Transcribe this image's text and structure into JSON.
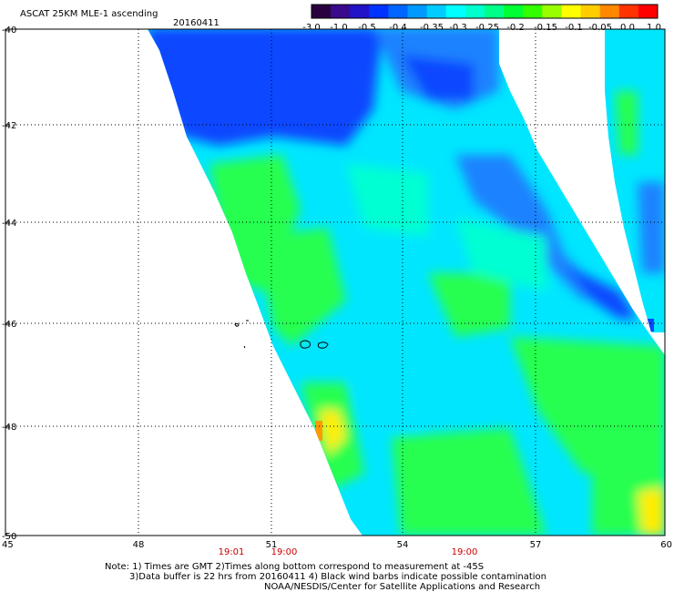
{
  "header": {
    "title": "ASCAT 25KM MLE-1 ascending",
    "date": "20160411"
  },
  "colorbar": {
    "labels": [
      "-3.0",
      "-1.0",
      "-0.5",
      "-0.4",
      "-0.35",
      "-0.3",
      "-0.25",
      "-0.2",
      "-0.15",
      "-0.1",
      "-0.05",
      "0.0",
      "1.0"
    ],
    "colors": [
      "#2b0040",
      "#3a0a8c",
      "#2212c8",
      "#0033ff",
      "#0066ff",
      "#0099ff",
      "#00ccff",
      "#00ffff",
      "#00ffcc",
      "#00ff88",
      "#00ff33",
      "#33ff00",
      "#99ff00",
      "#ffff00",
      "#ffcc00",
      "#ff8800",
      "#ff3300",
      "#ff0000"
    ]
  },
  "axes": {
    "lat_labels": [
      "-40",
      "-42",
      "-44",
      "-46",
      "-48",
      "-50"
    ],
    "lon_labels": [
      "45",
      "48",
      "51",
      "54",
      "57",
      "60"
    ]
  },
  "times": [
    "19:01",
    "19:00",
    "19:00"
  ],
  "notes": {
    "line1": "Note: 1) Times are GMT 2)Times along bottom correspond to measurement at -45S",
    "line2": "3)Data buffer is 22 hrs from 20160411 4) Black wind barbs indicate possible contamination",
    "line3": "NOAA/NESDIS/Center for Satellite Applications and Research"
  },
  "palette": {
    "blue": "#0a46ff",
    "mid_blue": "#1e82ff",
    "cyan": "#00e6ff",
    "aqua": "#00ffd2",
    "green": "#28ff50",
    "yellow": "#ffee00",
    "orange": "#ff9900"
  }
}
